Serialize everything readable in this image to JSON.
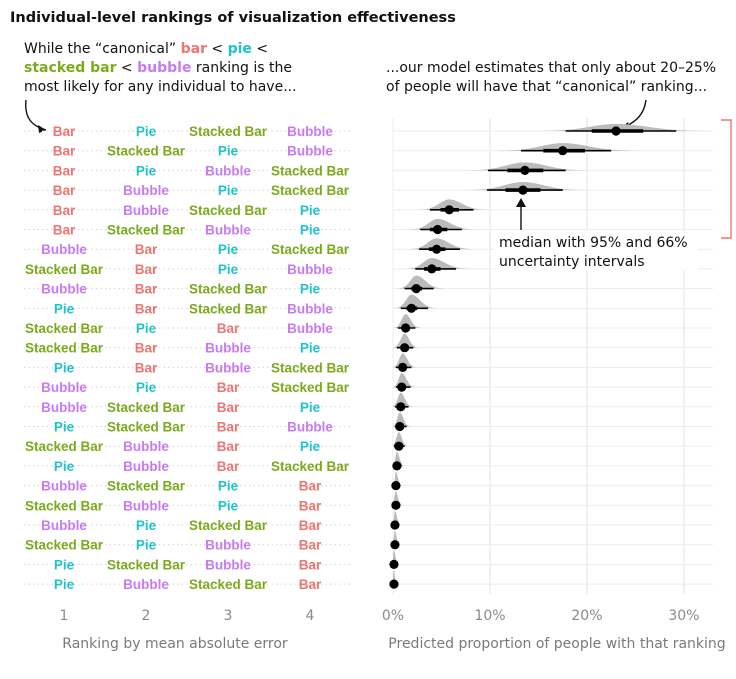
{
  "title": "Individual-level rankings of visualization effectiveness",
  "annotations": {
    "left": {
      "l1a": "While the “canonical” ",
      "l1b": "bar",
      "l1c": " < ",
      "l1d": "pie",
      "l1e": " <",
      "l2a": "stacked bar",
      "l2b": " < ",
      "l2c": "bubble",
      "l2d": " ranking is the",
      "l3": "most likely for any individual to have..."
    },
    "right": {
      "l1": "...our model estimates that only about 20–25%",
      "l2": "of people will have that “canonical” ranking..."
    },
    "interval": {
      "l1": "median with 95% and 66%",
      "l2": "uncertainty intervals"
    }
  },
  "colors": {
    "Bar": "#f07470",
    "Pie": "#1fc3cc",
    "Stacked Bar": "#7caa1d",
    "Bubble": "#c77cf0",
    "density": "#bbbbbb",
    "bracket": "#f07470"
  },
  "chart_data": {
    "type": "interval",
    "xlabel_left": "Ranking by mean absolute error",
    "xlabel_right": "Predicted proportion of people with that ranking",
    "rank_ticks": [
      "1",
      "2",
      "3",
      "4"
    ],
    "x_ticks": [
      "0%",
      "10%",
      "20%",
      "30%"
    ],
    "xlim": [
      0,
      0.33
    ],
    "rows": [
      {
        "ranking": [
          "Bar",
          "Pie",
          "Stacked Bar",
          "Bubble"
        ],
        "median": 0.23,
        "ci66": [
          0.205,
          0.258
        ],
        "ci95": [
          0.178,
          0.292
        ]
      },
      {
        "ranking": [
          "Bar",
          "Stacked Bar",
          "Pie",
          "Bubble"
        ],
        "median": 0.175,
        "ci66": [
          0.155,
          0.198
        ],
        "ci95": [
          0.132,
          0.225
        ]
      },
      {
        "ranking": [
          "Bar",
          "Pie",
          "Bubble",
          "Stacked Bar"
        ],
        "median": 0.136,
        "ci66": [
          0.118,
          0.155
        ],
        "ci95": [
          0.098,
          0.178
        ]
      },
      {
        "ranking": [
          "Bar",
          "Bubble",
          "Pie",
          "Stacked Bar"
        ],
        "median": 0.134,
        "ci66": [
          0.116,
          0.152
        ],
        "ci95": [
          0.097,
          0.175
        ]
      },
      {
        "ranking": [
          "Bar",
          "Bubble",
          "Stacked Bar",
          "Pie"
        ],
        "median": 0.058,
        "ci66": [
          0.049,
          0.068
        ],
        "ci95": [
          0.038,
          0.083
        ]
      },
      {
        "ranking": [
          "Bar",
          "Stacked Bar",
          "Bubble",
          "Pie"
        ],
        "median": 0.046,
        "ci66": [
          0.038,
          0.056
        ],
        "ci95": [
          0.028,
          0.071
        ]
      },
      {
        "ranking": [
          "Bubble",
          "Bar",
          "Pie",
          "Stacked Bar"
        ],
        "median": 0.045,
        "ci66": [
          0.037,
          0.054
        ],
        "ci95": [
          0.027,
          0.069
        ]
      },
      {
        "ranking": [
          "Stacked Bar",
          "Bar",
          "Pie",
          "Bubble"
        ],
        "median": 0.04,
        "ci66": [
          0.032,
          0.049
        ],
        "ci95": [
          0.023,
          0.065
        ]
      },
      {
        "ranking": [
          "Bubble",
          "Bar",
          "Stacked Bar",
          "Pie"
        ],
        "median": 0.024,
        "ci66": [
          0.019,
          0.03
        ],
        "ci95": [
          0.012,
          0.042
        ]
      },
      {
        "ranking": [
          "Pie",
          "Bar",
          "Stacked Bar",
          "Bubble"
        ],
        "median": 0.019,
        "ci66": [
          0.014,
          0.025
        ],
        "ci95": [
          0.008,
          0.036
        ]
      },
      {
        "ranking": [
          "Stacked Bar",
          "Pie",
          "Bar",
          "Bubble"
        ],
        "median": 0.013,
        "ci66": [
          0.009,
          0.017
        ],
        "ci95": [
          0.005,
          0.023
        ]
      },
      {
        "ranking": [
          "Stacked Bar",
          "Bar",
          "Bubble",
          "Pie"
        ],
        "median": 0.012,
        "ci66": [
          0.008,
          0.016
        ],
        "ci95": [
          0.004,
          0.021
        ]
      },
      {
        "ranking": [
          "Pie",
          "Bar",
          "Bubble",
          "Stacked Bar"
        ],
        "median": 0.01,
        "ci66": [
          0.007,
          0.014
        ],
        "ci95": [
          0.003,
          0.019
        ]
      },
      {
        "ranking": [
          "Bubble",
          "Pie",
          "Bar",
          "Stacked Bar"
        ],
        "median": 0.009,
        "ci66": [
          0.006,
          0.013
        ],
        "ci95": [
          0.003,
          0.018
        ]
      },
      {
        "ranking": [
          "Bubble",
          "Stacked Bar",
          "Bar",
          "Pie"
        ],
        "median": 0.008,
        "ci66": [
          0.005,
          0.011
        ],
        "ci95": [
          0.002,
          0.016
        ]
      },
      {
        "ranking": [
          "Pie",
          "Stacked Bar",
          "Bar",
          "Bubble"
        ],
        "median": 0.007,
        "ci66": [
          0.004,
          0.01
        ],
        "ci95": [
          0.002,
          0.014
        ]
      },
      {
        "ranking": [
          "Stacked Bar",
          "Bubble",
          "Bar",
          "Pie"
        ],
        "median": 0.006,
        "ci66": [
          0.004,
          0.009
        ],
        "ci95": [
          0.001,
          0.012
        ]
      },
      {
        "ranking": [
          "Pie",
          "Bubble",
          "Bar",
          "Stacked Bar"
        ],
        "median": 0.004,
        "ci66": [
          0.002,
          0.006
        ],
        "ci95": [
          0.001,
          0.009
        ]
      },
      {
        "ranking": [
          "Bubble",
          "Stacked Bar",
          "Pie",
          "Bar"
        ],
        "median": 0.003,
        "ci66": [
          0.002,
          0.005
        ],
        "ci95": [
          0.001,
          0.007
        ]
      },
      {
        "ranking": [
          "Stacked Bar",
          "Bubble",
          "Pie",
          "Bar"
        ],
        "median": 0.003,
        "ci66": [
          0.001,
          0.005
        ],
        "ci95": [
          0.0,
          0.007
        ]
      },
      {
        "ranking": [
          "Bubble",
          "Pie",
          "Stacked Bar",
          "Bar"
        ],
        "median": 0.002,
        "ci66": [
          0.001,
          0.004
        ],
        "ci95": [
          0.0,
          0.006
        ]
      },
      {
        "ranking": [
          "Stacked Bar",
          "Pie",
          "Bubble",
          "Bar"
        ],
        "median": 0.002,
        "ci66": [
          0.001,
          0.003
        ],
        "ci95": [
          0.0,
          0.005
        ]
      },
      {
        "ranking": [
          "Pie",
          "Stacked Bar",
          "Bubble",
          "Bar"
        ],
        "median": 0.001,
        "ci66": [
          0.0,
          0.002
        ],
        "ci95": [
          0.0,
          0.004
        ]
      },
      {
        "ranking": [
          "Pie",
          "Bubble",
          "Stacked Bar",
          "Bar"
        ],
        "median": 0.001,
        "ci66": [
          0.0,
          0.002
        ],
        "ci95": [
          0.0,
          0.003
        ]
      }
    ]
  }
}
